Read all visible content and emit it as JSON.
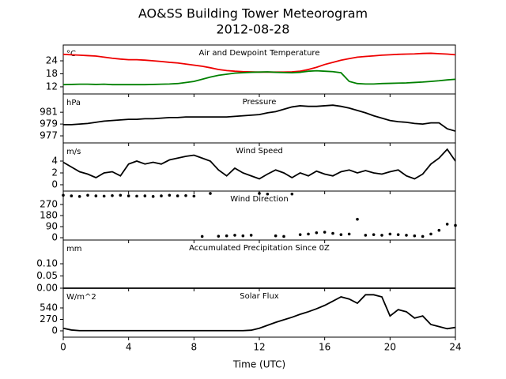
{
  "title": "AO&SS Building Tower Meteorogram",
  "subtitle": "2012-08-28",
  "chart_data": [
    {
      "type": "line",
      "title": "Air and Dewpoint Temperature",
      "ylabel": "°C",
      "xlim": [
        0,
        24
      ],
      "ylim": [
        8.7,
        31.3
      ],
      "yticks": [
        12,
        18,
        24
      ],
      "x": [
        0,
        0.5,
        1,
        1.5,
        2,
        2.5,
        3,
        3.5,
        4,
        4.5,
        5,
        5.5,
        6,
        6.5,
        7,
        7.5,
        8,
        8.5,
        9,
        9.5,
        10,
        10.5,
        11,
        11.5,
        12,
        12.5,
        13,
        13.5,
        14,
        14.5,
        15,
        15.5,
        16,
        16.5,
        17,
        17.5,
        18,
        18.5,
        19,
        19.5,
        20,
        20.5,
        21,
        21.5,
        22,
        22.5,
        23,
        23.5,
        24
      ],
      "series": [
        {
          "color": "#ee0000",
          "values": [
            27,
            26.8,
            26.6,
            26.4,
            26.2,
            25.7,
            25.2,
            24.8,
            24.5,
            24.5,
            24.3,
            24,
            23.7,
            23.3,
            23,
            22.5,
            22,
            21.5,
            20.8,
            20,
            19.5,
            19.2,
            19,
            18.9,
            18.8,
            18.8,
            18.8,
            18.8,
            18.9,
            19.2,
            20,
            21,
            22.3,
            23.3,
            24.3,
            25,
            25.7,
            26,
            26.3,
            26.6,
            26.8,
            27,
            27.1,
            27.2,
            27.4,
            27.5,
            27.3,
            27.1,
            26.8
          ]
        },
        {
          "color": "#008000",
          "values": [
            13,
            13.1,
            13.2,
            13.2,
            13.1,
            13.2,
            13,
            13,
            13,
            13,
            13,
            13.1,
            13.2,
            13.3,
            13.5,
            14,
            14.5,
            15.5,
            16.5,
            17.3,
            17.8,
            18.3,
            18.5,
            18.7,
            18.8,
            18.9,
            18.7,
            18.6,
            18.5,
            18.7,
            19.2,
            19.4,
            19.2,
            19,
            18.5,
            14.5,
            13.5,
            13.3,
            13.3,
            13.5,
            13.6,
            13.7,
            13.8,
            14,
            14.2,
            14.5,
            14.8,
            15.2,
            15.5
          ]
        }
      ]
    },
    {
      "type": "line",
      "title": "Pressure",
      "ylabel": "hPa",
      "xlim": [
        0,
        24
      ],
      "ylim": [
        975.8,
        984.1
      ],
      "yticks": [
        977,
        979,
        981
      ],
      "x": [
        0,
        0.5,
        1,
        1.5,
        2,
        2.5,
        3,
        3.5,
        4,
        4.5,
        5,
        5.5,
        6,
        6.5,
        7,
        7.5,
        8,
        8.5,
        9,
        9.5,
        10,
        10.5,
        11,
        11.5,
        12,
        12.5,
        13,
        13.5,
        14,
        14.5,
        15,
        15.5,
        16,
        16.5,
        17,
        17.5,
        18,
        18.5,
        19,
        19.5,
        20,
        20.5,
        21,
        21.5,
        22,
        22.5,
        23,
        23.5,
        24
      ],
      "series": [
        {
          "color": "#000000",
          "values": [
            978.9,
            978.9,
            979,
            979.1,
            979.3,
            979.5,
            979.6,
            979.7,
            979.8,
            979.8,
            979.9,
            979.9,
            980,
            980.1,
            980.1,
            980.2,
            980.2,
            980.2,
            980.2,
            980.2,
            980.2,
            980.3,
            980.4,
            980.5,
            980.6,
            980.9,
            981.1,
            981.5,
            981.9,
            982.1,
            982,
            982,
            982.1,
            982.2,
            982,
            981.7,
            981.3,
            980.9,
            980.4,
            980,
            979.6,
            979.4,
            979.3,
            979.1,
            979,
            979.2,
            979.2,
            978.2,
            977.8
          ]
        }
      ]
    },
    {
      "type": "line",
      "title": "Wind Speed",
      "ylabel": "m/s",
      "xlim": [
        0,
        24
      ],
      "ylim": [
        -1.07,
        7.07
      ],
      "yticks": [
        0,
        2,
        4
      ],
      "x": [
        0,
        0.5,
        1,
        1.5,
        2,
        2.5,
        3,
        3.5,
        4,
        4.5,
        5,
        5.5,
        6,
        6.5,
        7,
        7.5,
        8,
        8.5,
        9,
        9.5,
        10,
        10.5,
        11,
        11.5,
        12,
        12.5,
        13,
        13.5,
        14,
        14.5,
        15,
        15.5,
        16,
        16.5,
        17,
        17.5,
        18,
        18.5,
        19,
        19.5,
        20,
        20.5,
        21,
        21.5,
        22,
        22.5,
        23,
        23.5,
        24
      ],
      "series": [
        {
          "color": "#000000",
          "values": [
            3.8,
            3,
            2.2,
            1.8,
            1.2,
            2,
            2.2,
            1.5,
            3.5,
            4,
            3.5,
            3.8,
            3.5,
            4.2,
            4.5,
            4.8,
            5,
            4.5,
            4,
            2.5,
            1.5,
            2.8,
            2,
            1.5,
            1,
            1.8,
            2.5,
            2,
            1.2,
            2,
            1.5,
            2.3,
            1.8,
            1.5,
            2.2,
            2.5,
            2,
            2.4,
            2,
            1.8,
            2.2,
            2.5,
            1.5,
            1,
            1.8,
            3.5,
            4.5,
            6,
            4
          ]
        }
      ]
    },
    {
      "type": "scatter",
      "title": "Wind Direction",
      "xlim": [
        0,
        24
      ],
      "ylim": [
        -19,
        379
      ],
      "yticks": [
        0,
        90,
        180,
        270
      ],
      "x": [
        0,
        0.5,
        1,
        1.5,
        2,
        2.5,
        3,
        3.5,
        4,
        4.5,
        5,
        5.5,
        6,
        6.5,
        7,
        7.5,
        8,
        8.5,
        9,
        9.5,
        10,
        10.5,
        11,
        11.5,
        12,
        12.5,
        13,
        13.5,
        14,
        14.5,
        15,
        15.5,
        16,
        16.5,
        17,
        17.5,
        18,
        18.5,
        19,
        19.5,
        20,
        20.5,
        21,
        21.5,
        22,
        22.5,
        23,
        23.5,
        24
      ],
      "series": [
        {
          "color": "#000000",
          "values": [
            345,
            340,
            335,
            345,
            340,
            338,
            342,
            345,
            340,
            338,
            340,
            335,
            340,
            345,
            340,
            342,
            338,
            10,
            360,
            12,
            15,
            20,
            15,
            20,
            360,
            355,
            15,
            10,
            355,
            25,
            30,
            40,
            45,
            35,
            25,
            30,
            150,
            20,
            25,
            20,
            30,
            25,
            20,
            15,
            10,
            30,
            60,
            110,
            100
          ]
        }
      ]
    },
    {
      "type": "line",
      "title": "Accumulated Precipitation Since 0Z",
      "ylabel": "mm",
      "xlim": [
        0,
        24
      ],
      "ylim": [
        0,
        0.197
      ],
      "yticks": [
        {
          "value": 0,
          "label": "0.00"
        },
        {
          "value": 0.05,
          "label": "0.05"
        },
        {
          "value": 0.1,
          "label": "0.10"
        }
      ],
      "x": [
        0,
        0.5,
        1,
        1.5,
        2,
        2.5,
        3,
        3.5,
        4,
        4.5,
        5,
        5.5,
        6,
        6.5,
        7,
        7.5,
        8,
        8.5,
        9,
        9.5,
        10,
        10.5,
        11,
        11.5,
        12,
        12.5,
        13,
        13.5,
        14,
        14.5,
        15,
        15.5,
        16,
        16.5,
        17,
        17.5,
        18,
        18.5,
        19,
        19.5,
        20,
        20.5,
        21,
        21.5,
        22,
        22.5,
        23,
        23.5,
        24
      ],
      "series": [
        {
          "color": "#000000",
          "values": [
            0,
            0,
            0,
            0,
            0,
            0,
            0,
            0,
            0,
            0,
            0,
            0,
            0,
            0,
            0,
            0,
            0,
            0,
            0,
            0,
            0,
            0,
            0,
            0,
            0,
            0,
            0,
            0,
            0,
            0,
            0,
            0,
            0,
            0,
            0,
            0,
            0,
            0,
            0,
            0,
            0,
            0,
            0,
            0,
            0,
            0,
            0,
            0,
            0
          ]
        }
      ]
    },
    {
      "type": "line",
      "title": "Solar Flux",
      "ylabel": "W/m^2",
      "xlabel": "Time (UTC)",
      "xlim": [
        0,
        24
      ],
      "xticks": [
        0,
        4,
        8,
        12,
        16,
        20,
        24
      ],
      "ylim": [
        -149,
        1005
      ],
      "yticks": [
        0,
        270,
        540
      ],
      "x": [
        0,
        0.5,
        1,
        1.5,
        2,
        2.5,
        3,
        3.5,
        4,
        4.5,
        5,
        5.5,
        6,
        6.5,
        7,
        7.5,
        8,
        8.5,
        9,
        9.5,
        10,
        10.5,
        11,
        11.5,
        12,
        12.5,
        13,
        13.5,
        14,
        14.5,
        15,
        15.5,
        16,
        16.5,
        17,
        17.5,
        18,
        18.5,
        19,
        19.5,
        20,
        20.5,
        21,
        21.5,
        22,
        22.5,
        23,
        23.5,
        24
      ],
      "series": [
        {
          "color": "#000000",
          "values": [
            60,
            20,
            5,
            5,
            5,
            5,
            5,
            5,
            5,
            5,
            5,
            5,
            5,
            5,
            5,
            5,
            5,
            5,
            5,
            5,
            5,
            5,
            5,
            15,
            60,
            130,
            200,
            260,
            320,
            390,
            450,
            520,
            600,
            700,
            800,
            750,
            650,
            850,
            850,
            800,
            350,
            500,
            450,
            300,
            350,
            150,
            100,
            50,
            80
          ]
        }
      ]
    }
  ]
}
